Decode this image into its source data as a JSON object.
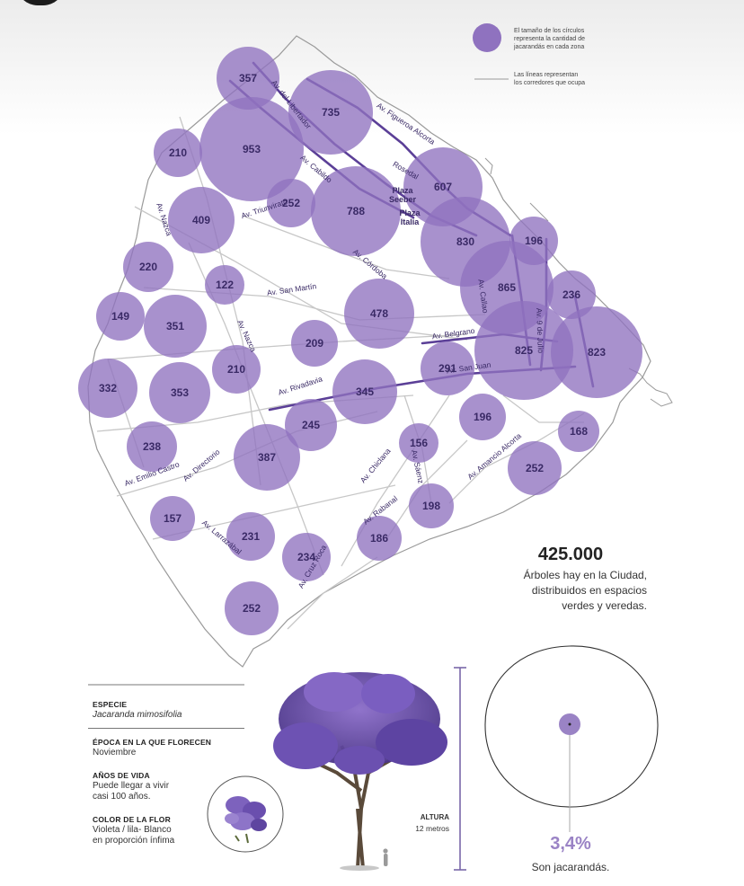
{
  "legend": {
    "circle_text": [
      "El tamaño de los círculos",
      "representa la cantidad de",
      "jacarandás en cada zona"
    ],
    "line_text": [
      "Las líneas representan",
      "los corredores que ocupa"
    ]
  },
  "colors": {
    "circle": "#8f72bf",
    "circle_text": "#3a2a66",
    "road_label": "#3a2a66",
    "corridor": "#5b3f97",
    "street": "#c7c7c7",
    "outline": "#9a9a9a"
  },
  "zones": [
    {
      "value": "357"
    },
    {
      "value": "735"
    },
    {
      "value": "210"
    },
    {
      "value": "953"
    },
    {
      "value": "607"
    },
    {
      "value": "252"
    },
    {
      "value": "788"
    },
    {
      "value": "409"
    },
    {
      "value": "830"
    },
    {
      "value": "196"
    },
    {
      "value": "220"
    },
    {
      "value": "122"
    },
    {
      "value": "865"
    },
    {
      "value": "236"
    },
    {
      "value": "149"
    },
    {
      "value": "351"
    },
    {
      "value": "478"
    },
    {
      "value": "209"
    },
    {
      "value": "825"
    },
    {
      "value": "823"
    },
    {
      "value": "332"
    },
    {
      "value": "353"
    },
    {
      "value": "210"
    },
    {
      "value": "291"
    },
    {
      "value": "345"
    },
    {
      "value": "196"
    },
    {
      "value": "245"
    },
    {
      "value": "168"
    },
    {
      "value": "238"
    },
    {
      "value": "387"
    },
    {
      "value": "156"
    },
    {
      "value": "252"
    },
    {
      "value": "198"
    },
    {
      "value": "157"
    },
    {
      "value": "231"
    },
    {
      "value": "186"
    },
    {
      "value": "234"
    },
    {
      "value": "252"
    }
  ],
  "avenues": [
    "Av. del Libertador",
    "Av. Figueroa Alcorta",
    "Rosedal",
    "Av. Cabildo",
    "Av. Triunvirato",
    "Av. Nazca",
    "Av. Córdoba",
    "Av. San Martín",
    "Av. Nazca",
    "Av. Callao",
    "Av. 9 de Julio",
    "Av. Belgrano",
    "Av. San Juan",
    "Av. Rivadavia",
    "Av. Directorio",
    "Av. Emilio Castro",
    "Av. Chiclana",
    "Av. Sáenz",
    "Av. Amancio Alcorta",
    "Av. Rabanal",
    "Av. Larrazábal",
    "Av. Cruz Roca"
  ],
  "places": [
    "Plaza",
    "Seeber",
    "Plaza",
    "Italia"
  ],
  "stats": {
    "total": "425.000",
    "total_desc": [
      "Árboles hay en la Ciudad,",
      "distribuidos en espacios",
      "verdes y veredas."
    ],
    "percent": "3,4%",
    "percent_label": "Son jacarandás."
  },
  "species_info": [
    {
      "label": "ESPECIE",
      "value": "Jacaranda mimosifolia"
    },
    {
      "label": "ÉPOCA EN LA QUE FLORECEN",
      "value": "Noviembre"
    },
    {
      "label": "AÑOS DE VIDA",
      "value": [
        "Puede llegar a vivir",
        "casi 100 años."
      ]
    },
    {
      "label": "COLOR DE LA FLOR",
      "value": [
        "Violeta / lila- Blanco",
        "en proporción ínfima"
      ]
    }
  ],
  "height": {
    "label": "ALTURA",
    "value": "12 metros"
  }
}
